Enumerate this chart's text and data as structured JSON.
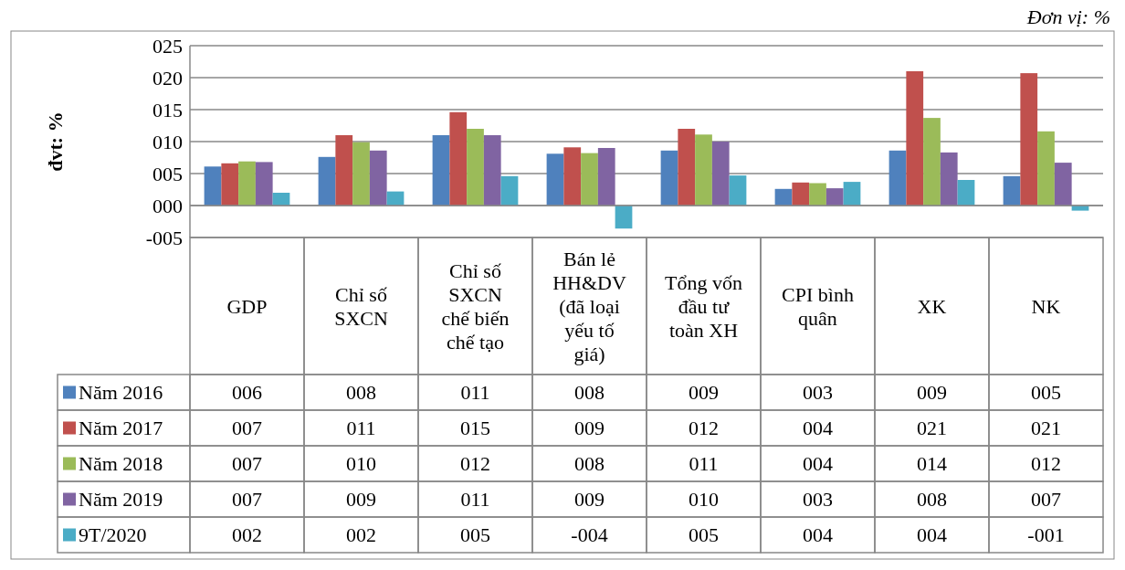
{
  "chart_data": {
    "type": "bar",
    "ylabel": "đvt: %",
    "annotations": [
      "Đơn vị: %"
    ],
    "categories": [
      "GDP",
      "Chỉ số\nSXCN",
      "Chỉ số\nSXCN\nchế biến\nchế tạo",
      "Bán lẻ\nHH&DV\n(đã loại\nyếu tố\ngiá)",
      "Tổng vốn\nđầu tư\ntoàn XH",
      "CPI bình\nquân",
      "XK",
      "NK"
    ],
    "series": [
      {
        "name": "Năm 2016",
        "color": "#4f81bd",
        "values": [
          6.1,
          7.6,
          11.0,
          8.1,
          8.6,
          2.6,
          8.6,
          4.6
        ],
        "value_labels": [
          "006",
          "008",
          "011",
          "008",
          "009",
          "003",
          "009",
          "005"
        ]
      },
      {
        "name": "Năm 2017",
        "color": "#c0504d",
        "values": [
          6.6,
          11.0,
          14.6,
          9.1,
          12.0,
          3.6,
          21.0,
          20.7
        ],
        "value_labels": [
          "007",
          "011",
          "015",
          "009",
          "012",
          "004",
          "021",
          "021"
        ]
      },
      {
        "name": "Năm 2018",
        "color": "#9bbb59",
        "values": [
          6.9,
          9.9,
          12.0,
          8.2,
          11.1,
          3.5,
          13.7,
          11.6
        ],
        "value_labels": [
          "007",
          "010",
          "012",
          "008",
          "011",
          "004",
          "014",
          "012"
        ]
      },
      {
        "name": "Năm 2019",
        "color": "#8064a2",
        "values": [
          6.8,
          8.6,
          11.0,
          9.0,
          10.0,
          2.7,
          8.3,
          6.7
        ],
        "value_labels": [
          "007",
          "009",
          "011",
          "009",
          "010",
          "003",
          "008",
          "007"
        ]
      },
      {
        "name": "9T/2020",
        "color": "#4bacc6",
        "values": [
          2.0,
          2.2,
          4.6,
          -3.6,
          4.7,
          3.7,
          4.0,
          -0.8
        ],
        "value_labels": [
          "002",
          "002",
          "005",
          "-004",
          "005",
          "004",
          "004",
          "-001"
        ]
      }
    ],
    "ylim": [
      -5,
      25
    ],
    "yticks": [
      {
        "value": -5,
        "label": "-005"
      },
      {
        "value": 0,
        "label": "000"
      },
      {
        "value": 5,
        "label": "005"
      },
      {
        "value": 10,
        "label": "010"
      },
      {
        "value": 15,
        "label": "015"
      },
      {
        "value": 20,
        "label": "020"
      },
      {
        "value": 25,
        "label": "025"
      }
    ],
    "grid": "y",
    "legend": "bottom left"
  }
}
